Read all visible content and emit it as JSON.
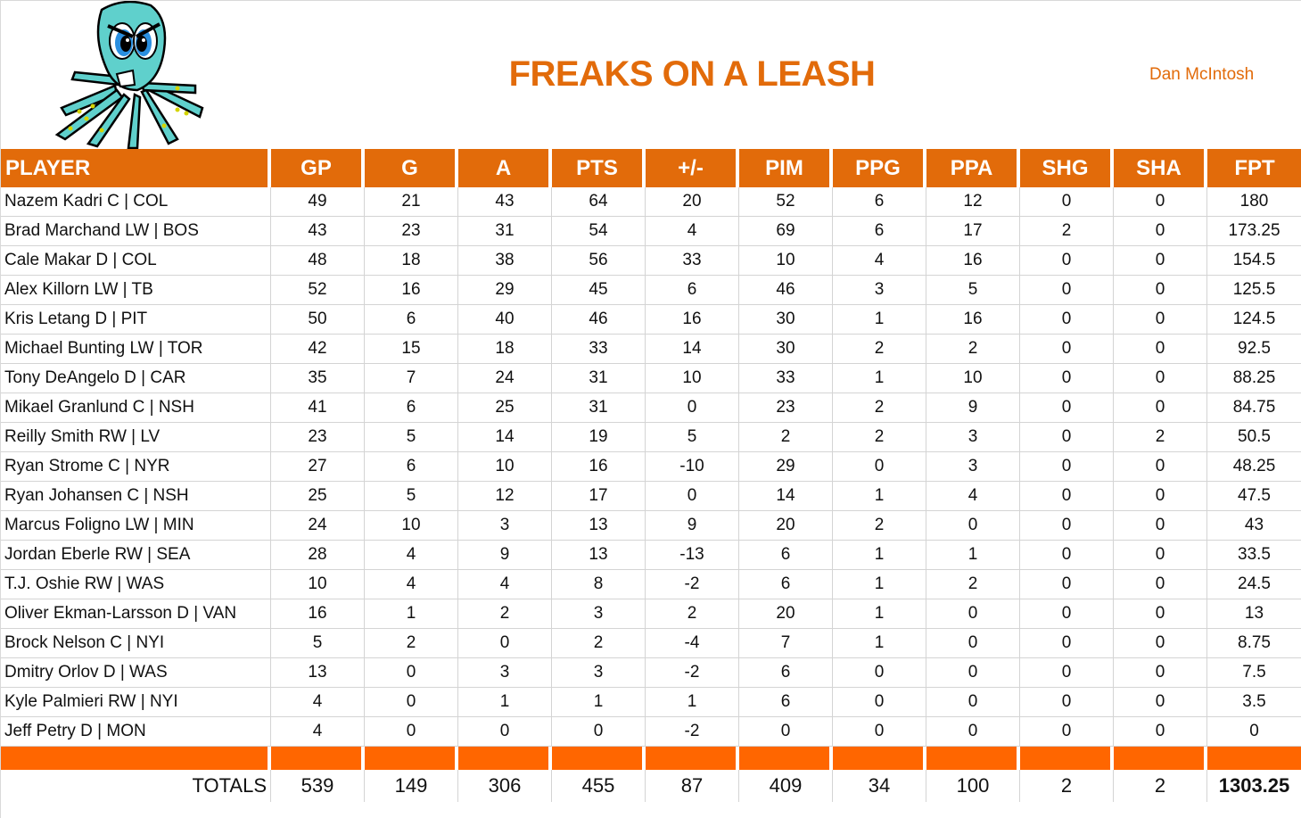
{
  "header": {
    "title": "FREAKS ON A LEASH",
    "owner": "Dan McIntosh",
    "logo": "angry-octopus-mascot"
  },
  "colors": {
    "header_bg": "#e26b0a",
    "separator_bg": "#ff6600",
    "title_text": "#e26b0a"
  },
  "columns": [
    "PLAYER",
    "GP",
    "G",
    "A",
    "PTS",
    "+/-",
    "PIM",
    "PPG",
    "PPA",
    "SHG",
    "SHA",
    "FPT"
  ],
  "rows": [
    [
      "Nazem Kadri C | COL",
      "49",
      "21",
      "43",
      "64",
      "20",
      "52",
      "6",
      "12",
      "0",
      "0",
      "180"
    ],
    [
      "Brad Marchand LW | BOS",
      "43",
      "23",
      "31",
      "54",
      "4",
      "69",
      "6",
      "17",
      "2",
      "0",
      "173.25"
    ],
    [
      "Cale Makar D | COL",
      "48",
      "18",
      "38",
      "56",
      "33",
      "10",
      "4",
      "16",
      "0",
      "0",
      "154.5"
    ],
    [
      "Alex Killorn LW | TB",
      "52",
      "16",
      "29",
      "45",
      "6",
      "46",
      "3",
      "5",
      "0",
      "0",
      "125.5"
    ],
    [
      "Kris Letang D | PIT",
      "50",
      "6",
      "40",
      "46",
      "16",
      "30",
      "1",
      "16",
      "0",
      "0",
      "124.5"
    ],
    [
      "Michael Bunting LW | TOR",
      "42",
      "15",
      "18",
      "33",
      "14",
      "30",
      "2",
      "2",
      "0",
      "0",
      "92.5"
    ],
    [
      "Tony DeAngelo D | CAR",
      "35",
      "7",
      "24",
      "31",
      "10",
      "33",
      "1",
      "10",
      "0",
      "0",
      "88.25"
    ],
    [
      "Mikael Granlund C | NSH",
      "41",
      "6",
      "25",
      "31",
      "0",
      "23",
      "2",
      "9",
      "0",
      "0",
      "84.75"
    ],
    [
      "Reilly Smith RW | LV",
      "23",
      "5",
      "14",
      "19",
      "5",
      "2",
      "2",
      "3",
      "0",
      "2",
      "50.5"
    ],
    [
      "Ryan Strome C | NYR",
      "27",
      "6",
      "10",
      "16",
      "-10",
      "29",
      "0",
      "3",
      "0",
      "0",
      "48.25"
    ],
    [
      "Ryan Johansen C | NSH",
      "25",
      "5",
      "12",
      "17",
      "0",
      "14",
      "1",
      "4",
      "0",
      "0",
      "47.5"
    ],
    [
      "Marcus Foligno LW | MIN",
      "24",
      "10",
      "3",
      "13",
      "9",
      "20",
      "2",
      "0",
      "0",
      "0",
      "43"
    ],
    [
      "Jordan Eberle RW | SEA",
      "28",
      "4",
      "9",
      "13",
      "-13",
      "6",
      "1",
      "1",
      "0",
      "0",
      "33.5"
    ],
    [
      "T.J. Oshie RW | WAS",
      "10",
      "4",
      "4",
      "8",
      "-2",
      "6",
      "1",
      "2",
      "0",
      "0",
      "24.5"
    ],
    [
      "Oliver Ekman-Larsson D | VAN",
      "16",
      "1",
      "2",
      "3",
      "2",
      "20",
      "1",
      "0",
      "0",
      "0",
      "13"
    ],
    [
      "Brock Nelson C | NYI",
      "5",
      "2",
      "0",
      "2",
      "-4",
      "7",
      "1",
      "0",
      "0",
      "0",
      "8.75"
    ],
    [
      "Dmitry Orlov D | WAS",
      "13",
      "0",
      "3",
      "3",
      "-2",
      "6",
      "0",
      "0",
      "0",
      "0",
      "7.5"
    ],
    [
      "Kyle Palmieri RW | NYI",
      "4",
      "0",
      "1",
      "1",
      "1",
      "6",
      "0",
      "0",
      "0",
      "0",
      "3.5"
    ],
    [
      "Jeff Petry D | MON",
      "4",
      "0",
      "0",
      "0",
      "-2",
      "0",
      "0",
      "0",
      "0",
      "0",
      "0"
    ]
  ],
  "totals": {
    "label": "TOTALS",
    "values": [
      "539",
      "149",
      "306",
      "455",
      "87",
      "409",
      "34",
      "100",
      "2",
      "2",
      "1303.25"
    ]
  }
}
